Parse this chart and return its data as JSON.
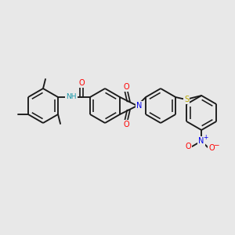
{
  "bg_color": "#e8e8e8",
  "bond_color": "#1a1a1a",
  "atom_colors": {
    "N": "#0000ee",
    "O": "#ff0000",
    "S": "#bbaa00",
    "NH": "#1a99aa",
    "C": "#1a1a1a"
  },
  "figsize": [
    3.0,
    3.0
  ],
  "dpi": 100,
  "lw": 1.35
}
